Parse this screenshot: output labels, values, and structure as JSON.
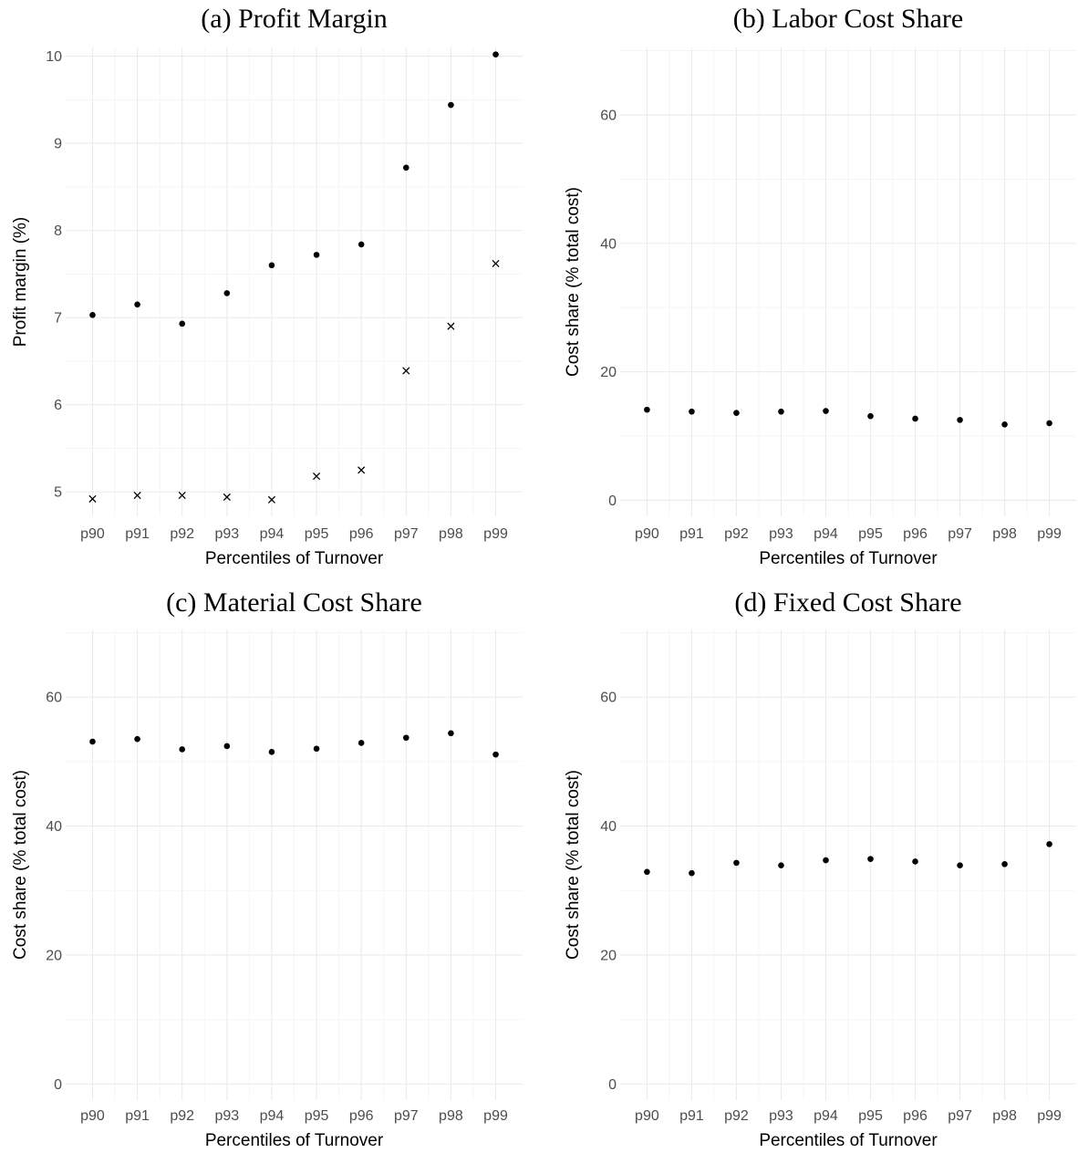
{
  "chart_data": [
    {
      "type": "scatter",
      "title": "(a) Profit Margin",
      "xlabel": "Percentiles of Turnover",
      "ylabel": "Profit margin (%)",
      "categories": [
        "p90",
        "p91",
        "p92",
        "p93",
        "p94",
        "p95",
        "p96",
        "p97",
        "p98",
        "p99"
      ],
      "yticks": [
        "5",
        "6",
        "7",
        "8",
        "9",
        "10"
      ],
      "ylim": [
        4.72,
        10.1
      ],
      "grid": true,
      "series": [
        {
          "marker": "dot",
          "values": [
            7.03,
            7.15,
            6.93,
            7.28,
            7.6,
            7.72,
            7.84,
            8.72,
            9.44,
            10.02
          ]
        },
        {
          "marker": "cross",
          "values": [
            4.92,
            4.96,
            4.96,
            4.94,
            4.91,
            5.18,
            5.25,
            6.39,
            6.9,
            7.62
          ]
        }
      ]
    },
    {
      "type": "scatter",
      "title": "(b) Labor Cost Share",
      "xlabel": "Percentiles of Turnover",
      "ylabel": "Cost share (% total cost)",
      "categories": [
        "p90",
        "p91",
        "p92",
        "p93",
        "p94",
        "p95",
        "p96",
        "p97",
        "p98",
        "p99"
      ],
      "yticks": [
        "0",
        "20",
        "40",
        "60"
      ],
      "ylim": [
        -2.5,
        70.5
      ],
      "grid": true,
      "series": [
        {
          "marker": "dot",
          "values": [
            14.1,
            13.8,
            13.6,
            13.8,
            13.9,
            13.1,
            12.7,
            12.5,
            11.8,
            12.0
          ]
        }
      ]
    },
    {
      "type": "scatter",
      "title": "(c) Material Cost Share",
      "xlabel": "Percentiles of Turnover",
      "ylabel": "Cost share (% total cost)",
      "categories": [
        "p90",
        "p91",
        "p92",
        "p93",
        "p94",
        "p95",
        "p96",
        "p97",
        "p98",
        "p99"
      ],
      "yticks": [
        "0",
        "20",
        "40",
        "60"
      ],
      "ylim": [
        -2.5,
        70.5
      ],
      "grid": true,
      "series": [
        {
          "marker": "dot",
          "values": [
            53.1,
            53.5,
            51.9,
            52.4,
            51.5,
            52.0,
            52.9,
            53.7,
            54.4,
            51.1
          ]
        }
      ]
    },
    {
      "type": "scatter",
      "title": "(d) Fixed Cost Share",
      "xlabel": "Percentiles of Turnover",
      "ylabel": "Cost share (% total cost)",
      "categories": [
        "p90",
        "p91",
        "p92",
        "p93",
        "p94",
        "p95",
        "p96",
        "p97",
        "p98",
        "p99"
      ],
      "yticks": [
        "0",
        "20",
        "40",
        "60"
      ],
      "ylim": [
        -2.5,
        70.5
      ],
      "grid": true,
      "series": [
        {
          "marker": "dot",
          "values": [
            32.9,
            32.7,
            34.3,
            33.9,
            34.7,
            34.9,
            34.5,
            33.9,
            34.1,
            37.2
          ]
        }
      ]
    }
  ]
}
